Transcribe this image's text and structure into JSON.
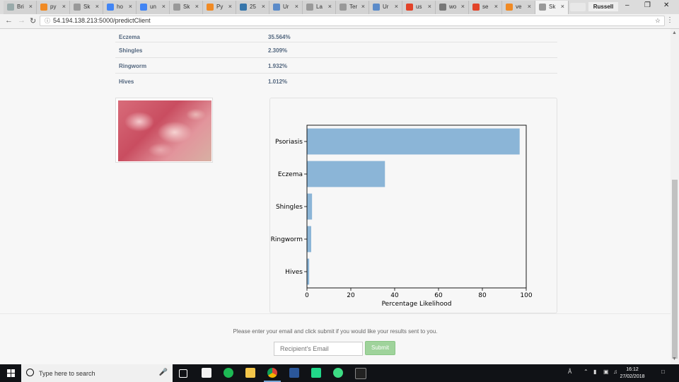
{
  "browser": {
    "tabs": [
      {
        "label": "Bri",
        "icon": "doc-icon",
        "color": "#9aa"
      },
      {
        "label": "py",
        "icon": "pen-icon",
        "color": "#f08a24"
      },
      {
        "label": "Sk",
        "icon": "doc-icon",
        "color": "#999"
      },
      {
        "label": "ho",
        "icon": "google-icon",
        "color": "#4285f4"
      },
      {
        "label": "un",
        "icon": "google-icon",
        "color": "#4285f4"
      },
      {
        "label": "Sk",
        "icon": "doc-icon",
        "color": "#999"
      },
      {
        "label": "Py",
        "icon": "pen-icon",
        "color": "#f08a24"
      },
      {
        "label": "25",
        "icon": "python-icon",
        "color": "#3776ab"
      },
      {
        "label": "Ur",
        "icon": "image-icon",
        "color": "#5b8bc9"
      },
      {
        "label": "La",
        "icon": "doc-icon",
        "color": "#999"
      },
      {
        "label": "Ter",
        "icon": "doc-icon",
        "color": "#999"
      },
      {
        "label": "Ur",
        "icon": "image-icon",
        "color": "#5b8bc9"
      },
      {
        "label": "us",
        "icon": "gitlab-icon",
        "color": "#e24329"
      },
      {
        "label": "wo",
        "icon": "wolf-icon",
        "color": "#777"
      },
      {
        "label": "se",
        "icon": "gitlab-icon",
        "color": "#e24329"
      },
      {
        "label": "ve",
        "icon": "pen-icon",
        "color": "#f08a24"
      },
      {
        "label": "Sk",
        "icon": "doc-icon",
        "color": "#999"
      }
    ],
    "user": "Russell",
    "url": "54.194.138.213:5000/predictClient"
  },
  "results": [
    {
      "name": "Eczema",
      "value": "35.564%"
    },
    {
      "name": "Shingles",
      "value": "2.309%"
    },
    {
      "name": "Ringworm",
      "value": "1.932%"
    },
    {
      "name": "Hives",
      "value": "1.012%"
    }
  ],
  "chart_data": {
    "type": "bar",
    "orientation": "horizontal",
    "categories": [
      "Psoriasis",
      "Eczema",
      "Shingles",
      "Ringworm",
      "Hives"
    ],
    "values": [
      97,
      35.564,
      2.309,
      1.932,
      1.012
    ],
    "xlabel": "Percentage Likelihood",
    "xlim": [
      0,
      100
    ],
    "xticks": [
      "0",
      "20",
      "40",
      "60",
      "80",
      "100"
    ],
    "bar_color": "#8bb5d7"
  },
  "form": {
    "prompt": "Please enter your email and click submit if you would like your results sent to you.",
    "email_placeholder": "Recipient's Email",
    "submit_label": "Submit"
  },
  "taskbar": {
    "search_placeholder": "Type here to search",
    "time": "16:12",
    "date": "27/02/2018"
  }
}
